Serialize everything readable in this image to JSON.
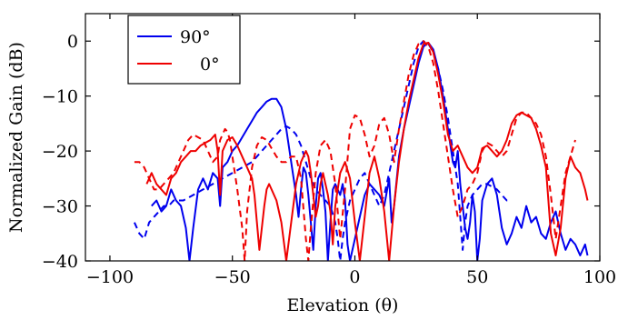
{
  "chart_data": {
    "type": "line",
    "title": "",
    "xlabel": "Elevation (θ)",
    "ylabel": "Normalized Gain (dB)",
    "xlim": [
      -110,
      100
    ],
    "ylim": [
      -40,
      5
    ],
    "xticks": [
      -100,
      -50,
      0,
      50,
      100
    ],
    "yticks": [
      0,
      -10,
      -20,
      -30,
      -40
    ],
    "xtick_labels": [
      "−100",
      "−50",
      "0",
      "50",
      "100"
    ],
    "ytick_labels": [
      "0",
      "−10",
      "−20",
      "−30",
      "−40"
    ],
    "grid": false,
    "legend_position": "top-left",
    "legend": [
      {
        "label": "90°",
        "color": "#0000ee"
      },
      {
        "label": "0°",
        "color": "#ee0000"
      }
    ],
    "series": [
      {
        "name": "90°",
        "style": "solid",
        "color": "#0000ee",
        "x": [
          -83,
          -81,
          -79,
          -77,
          -75,
          -73,
          -71,
          -69,
          -67.5,
          -66,
          -64,
          -62,
          -60,
          -58,
          -56,
          -55,
          -54,
          -52,
          -50,
          -48,
          -46,
          -44,
          -42,
          -40,
          -38,
          -36,
          -34,
          -32,
          -30,
          -28,
          -26,
          -24,
          -23,
          -22,
          -21,
          -20,
          -19,
          -18,
          -17,
          -16,
          -15,
          -14,
          -13,
          -12,
          -11,
          -10,
          -9,
          -8,
          -7,
          -6,
          -5,
          -4,
          -3,
          -2,
          -1,
          0,
          2,
          4,
          6,
          8,
          10,
          12,
          14,
          15,
          16,
          18,
          20,
          22,
          24,
          26,
          28,
          30,
          32,
          34,
          36,
          38,
          40,
          41,
          42,
          43,
          44,
          45,
          46,
          47,
          48,
          49,
          50,
          51,
          52,
          54,
          56,
          58,
          60,
          62,
          64,
          66,
          68,
          70,
          72,
          74,
          76,
          78,
          80,
          82,
          84,
          86,
          88,
          90,
          92,
          94,
          95
        ],
        "y": [
          -30,
          -29,
          -31,
          -30,
          -27,
          -29,
          -30,
          -34,
          -40,
          -34,
          -27,
          -25,
          -27,
          -24,
          -25,
          -30,
          -23,
          -22,
          -20,
          -19,
          -17.5,
          -16,
          -14.5,
          -13,
          -12,
          -11,
          -10.5,
          -10.5,
          -12,
          -16,
          -22,
          -28,
          -32,
          -27,
          -23,
          -24,
          -28,
          -33,
          -38,
          -30,
          -25,
          -24,
          -27,
          -31,
          -40,
          -33,
          -27,
          -26,
          -27,
          -28,
          -26,
          -29,
          -37,
          -40,
          -38,
          -36,
          -32,
          -28,
          -26,
          -27,
          -28,
          -30,
          -25,
          -33,
          -30,
          -21,
          -16,
          -12,
          -8,
          -4,
          -1,
          -0.3,
          -1.5,
          -5,
          -10,
          -16,
          -22,
          -23,
          -20,
          -26,
          -30,
          -34,
          -36,
          -33,
          -28,
          -31,
          -40,
          -36,
          -29,
          -26,
          -25,
          -28,
          -34,
          -37,
          -35,
          -32,
          -34,
          -30,
          -33,
          -32,
          -35,
          -36,
          -33,
          -31,
          -35,
          -38,
          -36,
          -37,
          -39,
          -37,
          -39
        ]
      },
      {
        "name": "",
        "style": "dashed",
        "color": "#0000ee",
        "x": [
          -90,
          -88,
          -86,
          -84,
          -82,
          -80,
          -78,
          -76,
          -74,
          -72,
          -70,
          -68,
          -66,
          -64,
          -62,
          -60,
          -58,
          -56,
          -54,
          -52,
          -50,
          -48,
          -46,
          -44,
          -42,
          -40,
          -38,
          -36,
          -34,
          -32,
          -30,
          -28,
          -26,
          -24,
          -22,
          -20,
          -18,
          -16,
          -14,
          -12,
          -10,
          -8,
          -7,
          -6,
          -5,
          -4,
          -2,
          0,
          2,
          4,
          6,
          8,
          10,
          12,
          14,
          16,
          18,
          20,
          22,
          24,
          26,
          28,
          30,
          32,
          34,
          36,
          38,
          40,
          42,
          43,
          44,
          45,
          46,
          48,
          50,
          52,
          54,
          56,
          58,
          60,
          62,
          64
        ],
        "y": [
          -33,
          -35,
          -36,
          -33,
          -32,
          -31,
          -30,
          -30,
          -29,
          -29,
          -29,
          -28.5,
          -28,
          -27.5,
          -27,
          -26.5,
          -26,
          -25.5,
          -25,
          -24.5,
          -24,
          -23.5,
          -23,
          -22.5,
          -22,
          -21,
          -20,
          -19,
          -18,
          -17,
          -16,
          -15.5,
          -16,
          -17,
          -19,
          -22,
          -25,
          -27,
          -28,
          -29,
          -30,
          -33,
          -36,
          -40,
          -36,
          -33,
          -29,
          -27,
          -25,
          -24,
          -26,
          -28,
          -30,
          -28,
          -24,
          -20,
          -16,
          -12,
          -8,
          -4,
          -1,
          0,
          -0.5,
          -2,
          -5,
          -9,
          -14,
          -20,
          -26,
          -32,
          -38,
          -33,
          -30,
          -28,
          -27,
          -26,
          -26,
          -26.5,
          -27,
          -28,
          -29,
          -29
        ]
      },
      {
        "name": "0°",
        "style": "solid",
        "color": "#ee0000",
        "x": [
          -85,
          -83,
          -81,
          -79,
          -77,
          -75,
          -73,
          -71,
          -69,
          -67,
          -65,
          -63,
          -61,
          -59,
          -57,
          -56,
          -55,
          -54,
          -52,
          -50,
          -48,
          -46,
          -44,
          -42,
          -41,
          -40,
          -39,
          -38,
          -37,
          -36,
          -35,
          -34,
          -32,
          -30,
          -28,
          -26,
          -24,
          -22,
          -20,
          -19,
          -18,
          -17,
          -16,
          -15,
          -14,
          -13,
          -12,
          -11,
          -10,
          -9,
          -8,
          -6,
          -4,
          -2,
          0,
          2,
          4,
          6,
          8,
          10,
          12,
          14,
          16,
          18,
          20,
          22,
          24,
          26,
          28,
          30,
          32,
          34,
          36,
          38,
          40,
          42,
          44,
          46,
          48,
          50,
          52,
          54,
          56,
          58,
          60,
          62,
          64,
          66,
          68,
          70,
          72,
          74,
          76,
          78,
          80,
          82,
          84,
          86,
          88,
          90,
          92,
          94,
          95
        ],
        "y": [
          -26,
          -24,
          -26,
          -27,
          -28,
          -25,
          -24,
          -22,
          -21,
          -20,
          -20,
          -19,
          -18.5,
          -18,
          -17,
          -20,
          -28,
          -20,
          -18,
          -17.5,
          -19,
          -21,
          -23,
          -25,
          -28,
          -33,
          -38,
          -34,
          -30,
          -27,
          -26,
          -27,
          -29,
          -33,
          -40,
          -33,
          -26,
          -22,
          -20,
          -21,
          -24,
          -28,
          -32,
          -30,
          -26,
          -24,
          -26,
          -28,
          -31,
          -37,
          -30,
          -24,
          -22,
          -25,
          -33,
          -40,
          -32,
          -24,
          -21,
          -25,
          -31,
          -40,
          -30,
          -22,
          -16,
          -11,
          -7,
          -3,
          -0.5,
          -0.3,
          -2,
          -6,
          -11,
          -17,
          -20,
          -19,
          -21,
          -23,
          -24,
          -23,
          -19.5,
          -19,
          -20,
          -21,
          -20,
          -18,
          -15,
          -13.5,
          -13,
          -13.5,
          -14,
          -16,
          -19,
          -23,
          -35,
          -39,
          -34,
          -25,
          -21,
          -23,
          -24,
          -27,
          -29
        ]
      },
      {
        "name": "",
        "style": "dashed",
        "color": "#ee0000",
        "x": [
          -90,
          -88,
          -86,
          -84,
          -82,
          -80,
          -78,
          -76,
          -74,
          -72,
          -70,
          -68,
          -66,
          -64,
          -62,
          -60,
          -58,
          -56,
          -55,
          -54,
          -53,
          -52,
          -51,
          -50,
          -48,
          -46,
          -45,
          -44,
          -42,
          -40,
          -38,
          -36,
          -34,
          -32,
          -30,
          -28,
          -26,
          -24,
          -22,
          -20,
          -19,
          -18,
          -16,
          -14,
          -12,
          -10,
          -8,
          -6,
          -4,
          -2,
          0,
          2,
          4,
          6,
          8,
          10,
          12,
          14,
          16,
          18,
          20,
          22,
          24,
          26,
          28,
          30,
          32,
          34,
          36,
          38,
          40,
          42,
          44,
          46,
          48,
          50,
          52,
          54,
          56,
          58,
          60,
          62,
          64,
          66,
          68,
          70,
          72,
          74,
          76,
          78,
          80,
          82,
          84,
          86,
          88,
          90
        ],
        "y": [
          -22,
          -22,
          -23,
          -25,
          -27,
          -27,
          -26,
          -25,
          -24,
          -22,
          -20,
          -18,
          -17,
          -17.5,
          -18,
          -20,
          -22,
          -21,
          -18,
          -17,
          -16,
          -16.5,
          -18,
          -21,
          -27,
          -34,
          -40,
          -31,
          -23,
          -19,
          -17.5,
          -18,
          -19.5,
          -21,
          -22,
          -22,
          -21,
          -21,
          -25,
          -36,
          -40,
          -34,
          -24,
          -19,
          -18,
          -20,
          -26,
          -36,
          -27,
          -16,
          -13.5,
          -14,
          -17,
          -21,
          -19,
          -15,
          -14,
          -17,
          -22,
          -16,
          -11,
          -6,
          -2.5,
          -0.5,
          0,
          -1,
          -4,
          -9,
          -15,
          -21,
          -27,
          -32,
          -30,
          -27,
          -26,
          -24,
          -20,
          -18.5,
          -19,
          -20,
          -21,
          -20,
          -17,
          -14,
          -13,
          -13,
          -14,
          -15,
          -17,
          -21,
          -28,
          -36,
          -30,
          -24,
          -21,
          -18
        ]
      }
    ]
  }
}
